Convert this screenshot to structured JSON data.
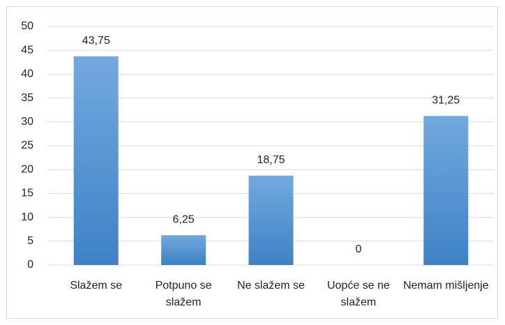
{
  "chart_data": {
    "type": "bar",
    "categories": [
      "Slažem se",
      "Potpuno se slažem",
      "Ne slažem se",
      "Uopće se ne slažem",
      "Nemam mišljenje"
    ],
    "values": [
      43.75,
      6.25,
      18.75,
      0,
      31.25
    ],
    "value_labels": [
      "43,75",
      "6,25",
      "18,75",
      "0",
      "31,25"
    ],
    "color": "#5b9bd5",
    "ylim": [
      0,
      50
    ],
    "yticks": [
      0,
      5,
      10,
      15,
      20,
      25,
      30,
      35,
      40,
      45,
      50
    ],
    "grid": true
  }
}
